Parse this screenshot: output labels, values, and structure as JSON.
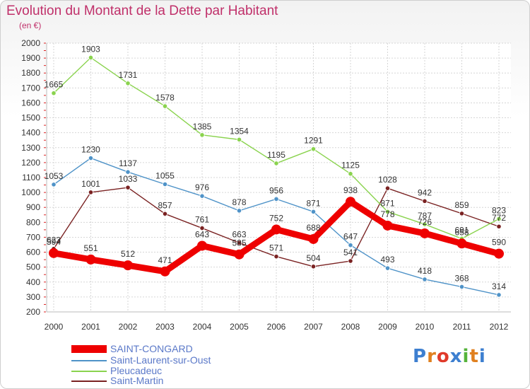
{
  "header": {
    "title": "Evolution du Montant de la Dette par Habitant",
    "subtitle": "(en €)"
  },
  "brand": {
    "text": "Proxiti"
  },
  "chart_data": {
    "type": "line",
    "title": "Evolution du Montant de la Dette par Habitant",
    "subtitle": "(en €)",
    "ylim": [
      200,
      2000
    ],
    "yticks": [
      200,
      300,
      400,
      500,
      600,
      700,
      800,
      900,
      1000,
      1100,
      1200,
      1300,
      1400,
      1500,
      1600,
      1700,
      1800,
      1900,
      2000
    ],
    "x": [
      "2000",
      "2001",
      "2002",
      "2003",
      "2004",
      "2005",
      "2006",
      "2007",
      "2008",
      "2009",
      "2010",
      "2011",
      "2012"
    ],
    "grid": true,
    "legend_position": "bottom",
    "series": [
      {
        "name": "SAINT-CONGARD",
        "color": "#ee0000",
        "width": "thick",
        "values": [
          594,
          551,
          512,
          471,
          643,
          585,
          752,
          688,
          938,
          778,
          726,
          658,
          590
        ]
      },
      {
        "name": "Saint-Laurent-sur-Oust",
        "color": "#4f93c8",
        "width": "thin",
        "values": [
          1053,
          1230,
          1137,
          1055,
          976,
          878,
          956,
          871,
          647,
          493,
          418,
          368,
          314
        ]
      },
      {
        "name": "Pleucadeuc",
        "color": "#8ad34e",
        "width": "thin",
        "values": [
          1665,
          1903,
          1731,
          1578,
          1385,
          1354,
          1195,
          1291,
          1125,
          871,
          787,
          691,
          823
        ]
      },
      {
        "name": "Saint-Martin",
        "color": "#7a2222",
        "width": "thin",
        "values": [
          623,
          1001,
          1033,
          857,
          761,
          663,
          571,
          504,
          541,
          1028,
          942,
          859,
          772
        ]
      }
    ]
  }
}
